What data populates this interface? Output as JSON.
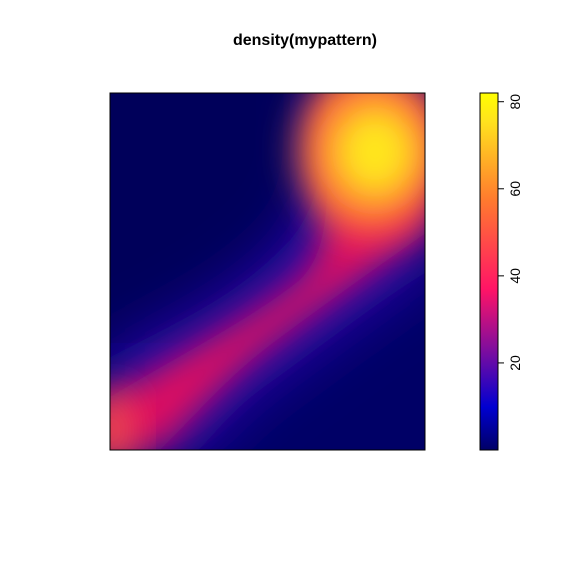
{
  "chart_data": {
    "type": "heatmap",
    "title": "density(mypattern)",
    "xlabel": "",
    "ylabel": "",
    "colorbar": {
      "range": [
        0,
        82
      ],
      "ticks": [
        20,
        40,
        60,
        80
      ],
      "tick_labels": [
        "20",
        "40",
        "60",
        "80"
      ],
      "colormap": [
        "#000066",
        "#0000d0",
        "#7e0d9e",
        "#ff1466",
        "#ff7a2e",
        "#ffe21e",
        "#ffff00"
      ]
    },
    "density_peaks": [
      {
        "x": 0.85,
        "y": 0.8,
        "value": 80
      },
      {
        "x": 0.02,
        "y": 0.07,
        "value": 48
      }
    ]
  }
}
